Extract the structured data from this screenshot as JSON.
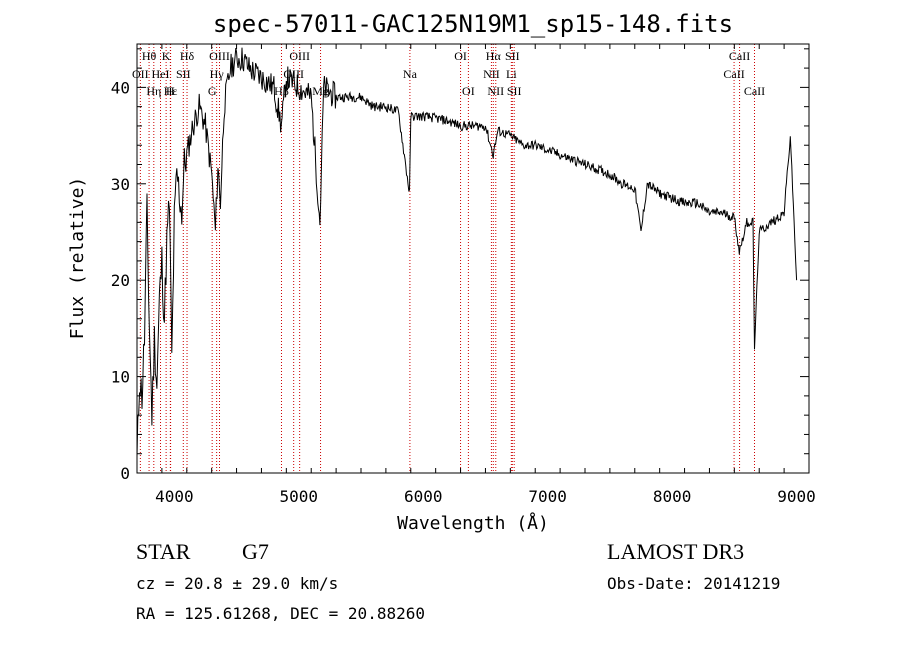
{
  "chart_data": {
    "type": "line",
    "title": "spec-57011-GAC125N19M1_sp15-148.fits",
    "xlabel": "Wavelength (Å)",
    "ylabel": "Flux (relative)",
    "xlim": [
      3700,
      9100
    ],
    "ylim": [
      0,
      44.5
    ],
    "xticks": [
      4000,
      5000,
      6000,
      7000,
      8000,
      9000
    ],
    "yticks": [
      0,
      10,
      20,
      30,
      40
    ],
    "xtick_labels": [
      "4000",
      "5000",
      "6000",
      "7000",
      "8000",
      "9000"
    ],
    "ytick_labels": [
      "0",
      "10",
      "20",
      "30",
      "40"
    ],
    "series": [
      {
        "name": "flux",
        "x": [
          3700,
          3720,
          3740,
          3760,
          3780,
          3800,
          3820,
          3840,
          3860,
          3880,
          3900,
          3920,
          3940,
          3960,
          3980,
          4000,
          4020,
          4040,
          4060,
          4080,
          4100,
          4150,
          4200,
          4250,
          4300,
          4330,
          4350,
          4370,
          4400,
          4450,
          4500,
          4550,
          4600,
          4700,
          4800,
          4860,
          4900,
          5000,
          5100,
          5170,
          5200,
          5300,
          5400,
          5500,
          5600,
          5700,
          5800,
          5890,
          5900,
          6000,
          6100,
          6200,
          6300,
          6400,
          6500,
          6562,
          6600,
          6700,
          6800,
          6900,
          7000,
          7100,
          7200,
          7300,
          7400,
          7500,
          7600,
          7700,
          7750,
          7800,
          7900,
          8000,
          8100,
          8200,
          8300,
          8400,
          8500,
          8540,
          8600,
          8650,
          8662,
          8700,
          8800,
          8900,
          8950,
          8980,
          9000
        ],
        "values": [
          1,
          10,
          8,
          14,
          27,
          15,
          6,
          14,
          9,
          18,
          22,
          16,
          24,
          28,
          12,
          26,
          31,
          29,
          27,
          32,
          33,
          36,
          38,
          36,
          31,
          25,
          32,
          28,
          38,
          42,
          43,
          43,
          42,
          41,
          40,
          36,
          41,
          40,
          39,
          26,
          40,
          39,
          39,
          39,
          38,
          38,
          37.5,
          29,
          37,
          37,
          36.8,
          36.5,
          36,
          36,
          36,
          33,
          35.5,
          35,
          34,
          34,
          33.5,
          33,
          32.5,
          32,
          31.5,
          31,
          30,
          29.5,
          25,
          30,
          29,
          28.5,
          28,
          28,
          27,
          27,
          26.5,
          23,
          26,
          26,
          13,
          25,
          26,
          27,
          35,
          26,
          20
        ]
      }
    ],
    "line_markers": [
      {
        "label": "Hθ",
        "wavelength": 3797,
        "row": 1
      },
      {
        "label": "OII",
        "wavelength": 3727,
        "row": 2
      },
      {
        "label": "Hη",
        "wavelength": 3835,
        "row": 3
      },
      {
        "label": "K",
        "wavelength": 3934,
        "row": 1
      },
      {
        "label": "HeI",
        "wavelength": 3889,
        "row": 2
      },
      {
        "label": "Hε",
        "wavelength": 3970,
        "row": 3
      },
      {
        "label": "Hδ",
        "wavelength": 4102,
        "row": 1
      },
      {
        "label": "SII",
        "wavelength": 4072,
        "row": 2
      },
      {
        "label": "H",
        "wavelength": 3968,
        "row": 3
      },
      {
        "label": "OIII",
        "wavelength": 4363,
        "row": 1
      },
      {
        "label": "Hγ",
        "wavelength": 4340,
        "row": 2
      },
      {
        "label": "G",
        "wavelength": 4304,
        "row": 3
      },
      {
        "label": "OIII",
        "wavelength": 5007,
        "row": 1
      },
      {
        "label": "OIII",
        "wavelength": 4959,
        "row": 2
      },
      {
        "label": "Hβ",
        "wavelength": 4861,
        "row": 3
      },
      {
        "label": "Mg",
        "wavelength": 5175,
        "row": 3
      },
      {
        "label": "Na",
        "wavelength": 5893,
        "row": 2
      },
      {
        "label": "OI",
        "wavelength": 6300,
        "row": 1
      },
      {
        "label": "OI",
        "wavelength": 6363,
        "row": 3
      },
      {
        "label": "Hα",
        "wavelength": 6563,
        "row": 1
      },
      {
        "label": "NII",
        "wavelength": 6548,
        "row": 2
      },
      {
        "label": "NII",
        "wavelength": 6583,
        "row": 3
      },
      {
        "label": "SII",
        "wavelength": 6716,
        "row": 1
      },
      {
        "label": "Li",
        "wavelength": 6708,
        "row": 2
      },
      {
        "label": "SII",
        "wavelength": 6731,
        "row": 3
      },
      {
        "label": "CaII",
        "wavelength": 8542,
        "row": 1
      },
      {
        "label": "CaII",
        "wavelength": 8498,
        "row": 2
      },
      {
        "label": "CaII",
        "wavelength": 8662,
        "row": 3
      }
    ]
  },
  "info": {
    "object_class": "STAR",
    "subclass": "G7",
    "survey": "LAMOST DR3",
    "redshift": "cz = 20.8 ± 29.0 km/s",
    "obs_date": "Obs-Date: 20141219",
    "coords": "RA = 125.61268, DEC =  20.88260"
  },
  "colors": {
    "line": "#000000",
    "marker_line": "#cc0000",
    "text": "#000000",
    "background": "#ffffff"
  }
}
